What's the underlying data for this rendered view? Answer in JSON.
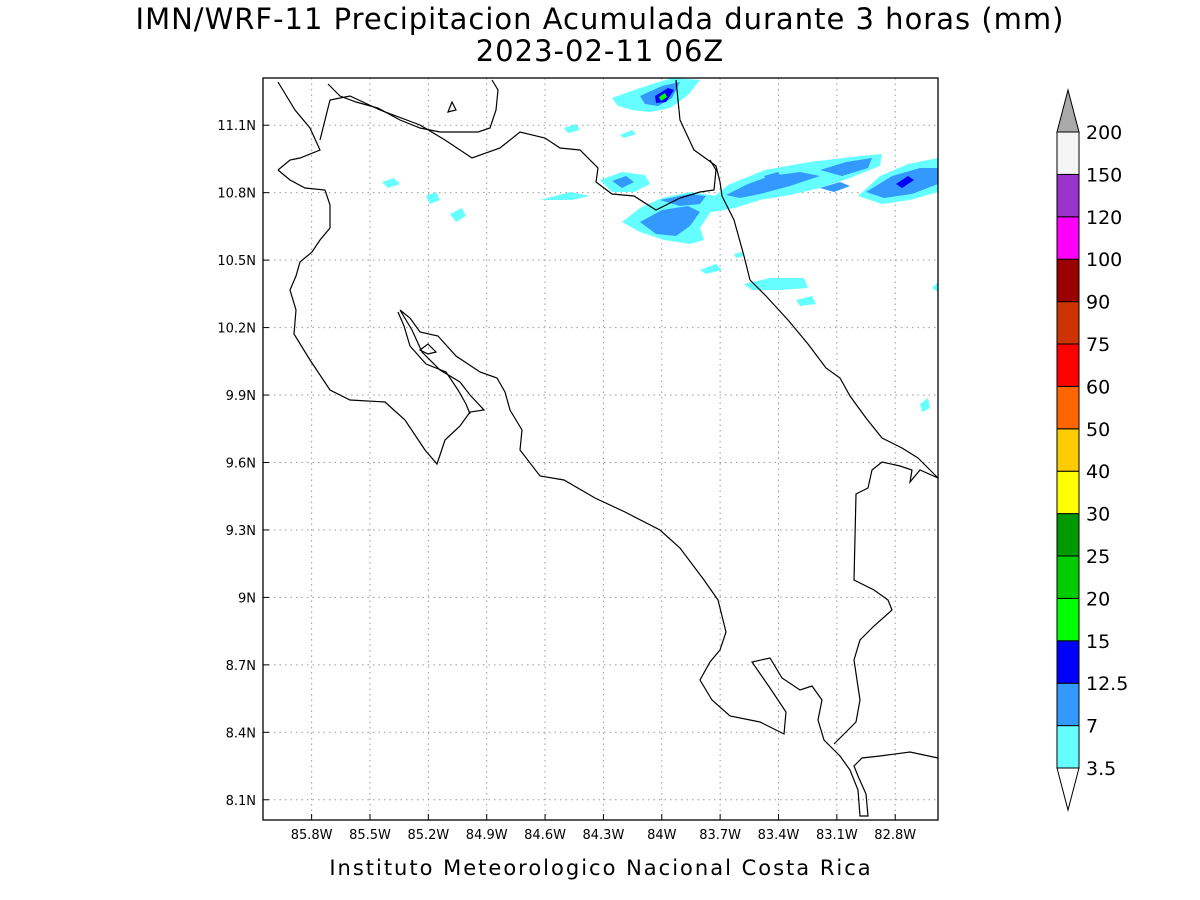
{
  "title_line1": "IMN/WRF-11 Precipitacion Acumulada durante 3 horas (mm)",
  "title_line2": "2023-02-11 06Z",
  "footer": "Instituto Meteorologico Nacional Costa Rica",
  "map": {
    "lon_range": [
      -86.05,
      -82.58
    ],
    "lat_range": [
      8.01,
      11.31
    ],
    "lon_ticks": [
      "85.8W",
      "85.5W",
      "85.2W",
      "84.9W",
      "84.6W",
      "84.3W",
      "84W",
      "83.7W",
      "83.4W",
      "83.1W",
      "82.8W"
    ],
    "lat_ticks": [
      "8.1N",
      "8.4N",
      "8.7N",
      "9N",
      "9.3N",
      "9.6N",
      "9.9N",
      "10.2N",
      "10.5N",
      "10.8N",
      "11.1N"
    ],
    "grid": "dotted"
  },
  "colorbar": {
    "levels": [
      "3.5",
      "7",
      "12.5",
      "15",
      "20",
      "25",
      "30",
      "40",
      "50",
      "60",
      "75",
      "90",
      "100",
      "120",
      "150",
      "200"
    ],
    "colors": [
      "#66ffff",
      "#3399ff",
      "#0000ff",
      "#00ff00",
      "#00cc00",
      "#009900",
      "#ffff00",
      "#ffcc00",
      "#ff6600",
      "#ff0000",
      "#cc3300",
      "#990000",
      "#ff00ff",
      "#9933cc",
      "#f5f5f5"
    ],
    "over_color": "#aaaaaa",
    "under_color": "#ffffff"
  },
  "colors": {
    "light_cyan": "#66ffff",
    "light_blue": "#3399ff",
    "blue": "#0000ff",
    "green": "#00ff00"
  }
}
